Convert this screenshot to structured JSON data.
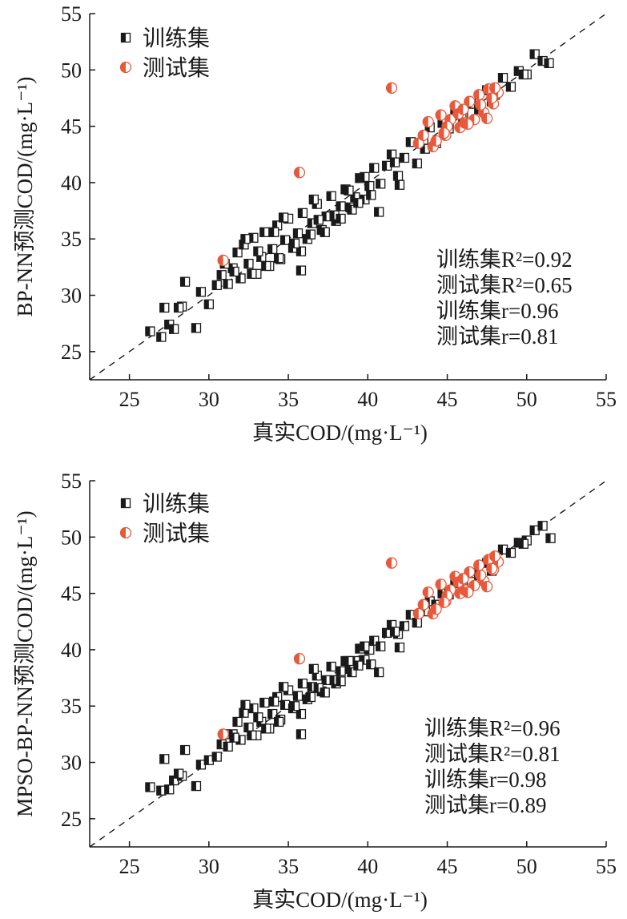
{
  "colors": {
    "train": "#1a1a1a",
    "test": "#e8583a",
    "axis": "#1a1a1a"
  },
  "chart_data": [
    {
      "type": "scatter",
      "xlabel": "真实COD/(mg·L⁻¹)",
      "ylabel": "BP-NN预测COD/(mg·L⁻¹)",
      "xlim": [
        22.5,
        55
      ],
      "ylim": [
        22.5,
        55
      ],
      "xticks": [
        25,
        30,
        35,
        40,
        45,
        50,
        55
      ],
      "yticks": [
        25,
        30,
        35,
        40,
        45,
        50,
        55
      ],
      "diagonal": "y = x (dashed)",
      "legend": {
        "placement": "top-left",
        "entries": [
          "训练集",
          "测试集"
        ]
      },
      "stats": [
        "训练集R²=0.92",
        "测试集R²=0.65",
        "训练集r=0.96",
        "测试集r=0.81"
      ],
      "series": [
        {
          "name": "训练集",
          "marker": "half-filled square",
          "x": [
            26.3,
            27.0,
            27.2,
            27.5,
            27.8,
            28.3,
            28.5,
            29.2,
            29.5,
            30.0,
            30.5,
            30.8,
            31.2,
            31.5,
            31.8,
            32.0,
            32.2,
            32.5,
            32.8,
            33.0,
            33.3,
            33.5,
            33.8,
            34.0,
            34.3,
            34.5,
            34.8,
            35.0,
            35.3,
            35.6,
            35.9,
            36.2,
            36.5,
            36.8,
            37.1,
            37.4,
            37.7,
            38.0,
            38.3,
            38.6,
            38.9,
            39.2,
            39.5,
            39.8,
            40.1,
            40.4,
            40.8,
            41.2,
            41.5,
            41.9,
            42.3,
            42.7,
            43.1,
            43.5,
            43.9,
            44.3,
            44.7,
            45.1,
            45.5,
            46.0,
            46.5,
            47.0,
            47.5,
            48.0,
            48.5,
            49.0,
            49.5,
            50.0,
            50.5,
            51.0,
            51.4,
            32.3,
            33.6,
            34.7,
            35.8,
            36.9,
            37.9,
            39.0,
            40.2,
            41.7,
            35.8,
            31.0,
            32.7,
            34.4,
            36.4,
            38.3,
            39.8,
            42.0,
            43.6,
            45.9,
            47.8,
            49.8,
            28.1,
            31.6,
            33.1,
            34.1,
            35.4,
            36.6,
            37.3,
            38.8,
            39.4,
            40.7
          ],
          "y": [
            26.8,
            26.3,
            28.9,
            27.4,
            27.0,
            29.0,
            31.2,
            27.1,
            30.3,
            29.2,
            30.9,
            31.8,
            31.0,
            32.4,
            33.8,
            31.5,
            34.5,
            32.8,
            35.1,
            31.9,
            33.4,
            35.6,
            32.6,
            34.1,
            36.2,
            33.2,
            34.9,
            36.8,
            34.2,
            35.5,
            37.3,
            35.0,
            36.4,
            38.1,
            35.8,
            37.0,
            38.8,
            36.6,
            37.9,
            39.4,
            37.8,
            38.7,
            40.4,
            38.5,
            39.7,
            41.3,
            39.9,
            41.5,
            42.5,
            40.6,
            42.2,
            43.6,
            41.7,
            43.8,
            44.9,
            43.5,
            45.3,
            44.8,
            46.4,
            45.8,
            47.0,
            46.5,
            48.2,
            47.8,
            49.3,
            48.5,
            49.9,
            49.6,
            51.4,
            50.8,
            50.6,
            35.0,
            32.6,
            36.9,
            33.9,
            36.7,
            37.1,
            37.6,
            38.9,
            41.8,
            32.2,
            32.8,
            31.9,
            33.3,
            35.4,
            36.8,
            40.5,
            39.8,
            43.0,
            46.1,
            47.2,
            49.6,
            28.9,
            32.1,
            33.9,
            35.6,
            34.6,
            38.5,
            35.6,
            39.3,
            38.2,
            37.4
          ]
        },
        {
          "name": "测试集",
          "marker": "half-filled circle",
          "x": [
            30.9,
            35.7,
            41.5,
            43.2,
            43.8,
            44.1,
            44.6,
            44.9,
            45.2,
            45.5,
            45.8,
            46.1,
            46.4,
            46.7,
            47.0,
            47.3,
            47.6,
            47.9,
            48.2,
            44.3,
            45.0,
            45.7,
            46.3,
            47.1,
            47.8,
            43.5,
            44.8,
            46.0,
            47.5,
            48.0
          ],
          "y": [
            33.1,
            40.9,
            48.4,
            43.5,
            45.4,
            43.2,
            46.0,
            44.2,
            45.6,
            46.8,
            44.9,
            45.3,
            47.2,
            45.6,
            47.8,
            46.2,
            48.3,
            47.0,
            48.0,
            43.7,
            45.0,
            46.1,
            45.2,
            46.9,
            47.5,
            44.2,
            44.4,
            46.5,
            45.7,
            48.4
          ]
        }
      ]
    },
    {
      "type": "scatter",
      "xlabel": "真实COD/(mg·L⁻¹)",
      "ylabel": "MPSO-BP-NN预测COD/(mg·L⁻¹)",
      "xlim": [
        22.5,
        55
      ],
      "ylim": [
        22.5,
        55
      ],
      "xticks": [
        25,
        30,
        35,
        40,
        45,
        50,
        55
      ],
      "yticks": [
        25,
        30,
        35,
        40,
        45,
        50,
        55
      ],
      "diagonal": "y = x (dashed)",
      "legend": {
        "placement": "top-left",
        "entries": [
          "训练集",
          "测试集"
        ]
      },
      "stats": [
        "训练集R²=0.96",
        "测试集R²=0.81",
        "训练集r=0.98",
        "测试集r=0.89"
      ],
      "series": [
        {
          "name": "训练集",
          "marker": "half-filled square",
          "x": [
            26.3,
            27.0,
            27.2,
            27.5,
            27.8,
            28.3,
            28.5,
            29.2,
            29.5,
            30.0,
            30.5,
            30.8,
            31.2,
            31.5,
            31.8,
            32.0,
            32.2,
            32.5,
            32.8,
            33.0,
            33.3,
            33.5,
            33.8,
            34.0,
            34.3,
            34.5,
            34.8,
            35.0,
            35.3,
            35.6,
            35.9,
            36.2,
            36.5,
            36.8,
            37.1,
            37.4,
            37.7,
            38.0,
            38.3,
            38.6,
            38.9,
            39.2,
            39.5,
            39.8,
            40.1,
            40.4,
            40.8,
            41.2,
            41.5,
            41.9,
            42.3,
            42.7,
            43.1,
            43.5,
            43.9,
            44.3,
            44.7,
            45.1,
            45.5,
            46.0,
            46.5,
            47.0,
            47.5,
            48.0,
            48.5,
            49.0,
            49.5,
            50.0,
            50.5,
            51.0,
            51.5,
            32.3,
            33.6,
            34.7,
            35.8,
            36.9,
            37.9,
            39.0,
            40.2,
            41.7,
            35.8,
            31.0,
            32.7,
            34.4,
            36.4,
            38.3,
            39.8,
            42.0,
            43.6,
            45.9,
            47.8,
            49.8,
            28.1,
            31.6,
            33.1,
            34.1,
            35.4,
            36.6,
            37.3,
            38.8,
            39.4,
            40.7
          ],
          "y": [
            27.8,
            27.5,
            30.3,
            27.6,
            28.4,
            28.8,
            31.1,
            27.9,
            29.8,
            30.2,
            30.5,
            31.6,
            31.4,
            32.5,
            33.6,
            32.0,
            34.4,
            33.1,
            34.8,
            32.4,
            33.6,
            35.3,
            33.0,
            34.3,
            35.8,
            33.8,
            35.1,
            36.4,
            34.8,
            35.9,
            37.0,
            35.6,
            36.7,
            37.7,
            36.3,
            37.3,
            38.5,
            37.0,
            38.1,
            39.0,
            38.3,
            39.0,
            40.1,
            39.1,
            40.0,
            40.8,
            40.3,
            41.5,
            42.2,
            41.4,
            42.1,
            43.1,
            42.4,
            43.6,
            44.3,
            44.0,
            45.0,
            44.9,
            45.9,
            45.9,
            46.8,
            46.6,
            47.7,
            47.8,
            48.9,
            48.6,
            49.5,
            49.7,
            50.6,
            51.0,
            49.9,
            35.1,
            33.0,
            36.7,
            34.3,
            36.6,
            37.3,
            38.0,
            38.7,
            41.6,
            32.5,
            32.5,
            32.4,
            33.6,
            35.8,
            37.2,
            40.3,
            40.2,
            43.4,
            46.0,
            47.0,
            49.4,
            29.0,
            32.2,
            34.0,
            35.4,
            35.0,
            38.3,
            36.2,
            39.0,
            38.6,
            38.0
          ]
        },
        {
          "name": "测试集",
          "marker": "half-filled circle",
          "x": [
            30.9,
            35.7,
            41.5,
            43.2,
            43.8,
            44.1,
            44.6,
            44.9,
            45.2,
            45.5,
            45.8,
            46.1,
            46.4,
            46.7,
            47.0,
            47.3,
            47.6,
            47.9,
            48.2,
            44.3,
            45.0,
            45.7,
            46.3,
            47.1,
            47.8,
            43.5,
            44.8,
            46.0,
            47.5,
            48.0
          ],
          "y": [
            32.5,
            39.2,
            47.7,
            43.2,
            45.1,
            43.2,
            45.8,
            44.3,
            45.3,
            46.5,
            45.0,
            45.3,
            46.9,
            45.7,
            47.5,
            46.1,
            48.0,
            47.1,
            47.8,
            43.6,
            44.8,
            46.0,
            45.1,
            46.6,
            47.2,
            44.0,
            44.2,
            46.3,
            45.6,
            48.3
          ]
        }
      ]
    }
  ]
}
